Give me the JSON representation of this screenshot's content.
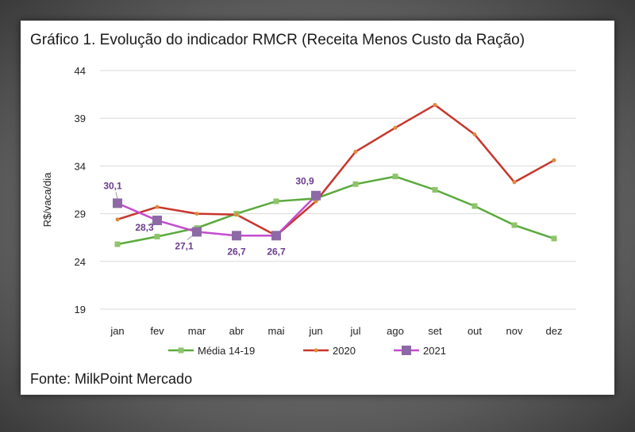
{
  "title": "Gráfico 1. Evolução do indicador RMCR (Receita Menos Custo da Ração)",
  "source": "Fonte: MilkPoint Mercado",
  "colors": {
    "media": "#5aaa3c",
    "y2020": "#c8352b",
    "y2021": "#c44bd0",
    "marker2021": "#8d6aa6",
    "label2021": "#6a3b8f",
    "grid": "#d9d9d9"
  },
  "chart_data": {
    "type": "line",
    "title": "Gráfico 1. Evolução do indicador RMCR (Receita Menos Custo da Ração)",
    "xlabel": "",
    "ylabel": "R$/vaca/dia",
    "ylim": [
      19,
      44
    ],
    "yticks": [
      19,
      24,
      29,
      34,
      39,
      44
    ],
    "categories": [
      "jan",
      "fev",
      "mar",
      "abr",
      "mai",
      "jun",
      "jul",
      "ago",
      "set",
      "out",
      "nov",
      "dez"
    ],
    "series": [
      {
        "name": "Média 14-19",
        "key": "media",
        "values": [
          25.8,
          26.6,
          27.5,
          29.0,
          30.3,
          30.6,
          32.1,
          32.9,
          31.5,
          29.8,
          27.8,
          26.4
        ]
      },
      {
        "name": "2020",
        "key": "y2020",
        "values": [
          28.4,
          29.7,
          29.0,
          28.9,
          26.7,
          30.3,
          35.5,
          38.0,
          40.4,
          37.3,
          32.3,
          34.6
        ]
      },
      {
        "name": "2021",
        "key": "y2021",
        "values": [
          30.1,
          28.3,
          27.1,
          26.7,
          26.7,
          30.9,
          null,
          null,
          null,
          null,
          null,
          null
        ],
        "labels": [
          "30,1",
          "28,3",
          "27,1",
          "26,7",
          "26,7",
          "30,9"
        ]
      }
    ],
    "legend_position": "bottom"
  }
}
